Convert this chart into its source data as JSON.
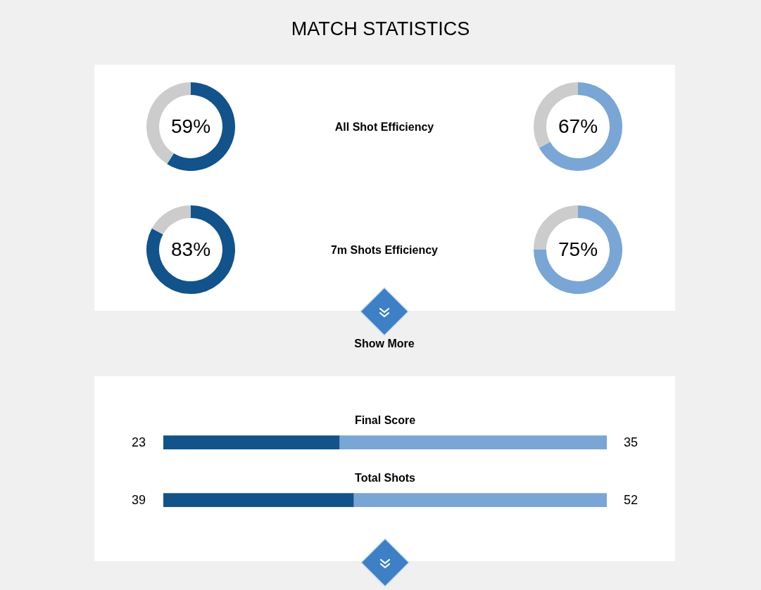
{
  "chart_data": [
    {
      "type": "other",
      "title": "MATCH STATISTICS"
    },
    {
      "type": "donut",
      "categories": [
        null,
        null
      ],
      "values": [
        59,
        41
      ],
      "colors": [
        "#11538a",
        "#cccccc"
      ],
      "value_labels": [
        "59%",
        null
      ]
    },
    {
      "type": "other",
      "title": "All Shot Efficiency"
    },
    {
      "type": "donut",
      "categories": [
        null,
        null
      ],
      "values": [
        67,
        33
      ],
      "colors": [
        "#79a6d4",
        "#cccccc"
      ],
      "value_labels": [
        "67%",
        null
      ]
    },
    {
      "type": "donut",
      "categories": [
        null,
        null
      ],
      "values": [
        83,
        17
      ],
      "colors": [
        "#11538a",
        "#cccccc"
      ],
      "value_labels": [
        "83%",
        null
      ]
    },
    {
      "type": "other",
      "title": "7m Shots Efficiency"
    },
    {
      "type": "donut",
      "categories": [
        null,
        null
      ],
      "values": [
        75,
        25
      ],
      "colors": [
        "#79a6d4",
        "#cccccc"
      ],
      "value_labels": [
        "75%",
        null
      ]
    },
    {
      "type": "other",
      "annotations": [
        "Show More"
      ]
    },
    {
      "type": "bar",
      "title": "Final Score",
      "orientation": "horizontal",
      "stacked": true,
      "categories": [
        null
      ],
      "series": [
        {
          "color": "#11538a",
          "values": [
            23
          ]
        },
        {
          "color": "#79a6d4",
          "values": [
            35
          ]
        }
      ],
      "xlim": [
        0,
        58
      ],
      "data_labels": true,
      "tick_labels": false
    },
    {
      "type": "bar",
      "title": "Total Shots",
      "orientation": "horizontal",
      "stacked": true,
      "categories": [
        null
      ],
      "series": [
        {
          "color": "#11538a",
          "values": [
            39
          ]
        },
        {
          "color": "#79a6d4",
          "values": [
            52
          ]
        }
      ],
      "xlim": [
        0,
        91
      ],
      "data_labels": true,
      "tick_labels": false
    }
  ]
}
